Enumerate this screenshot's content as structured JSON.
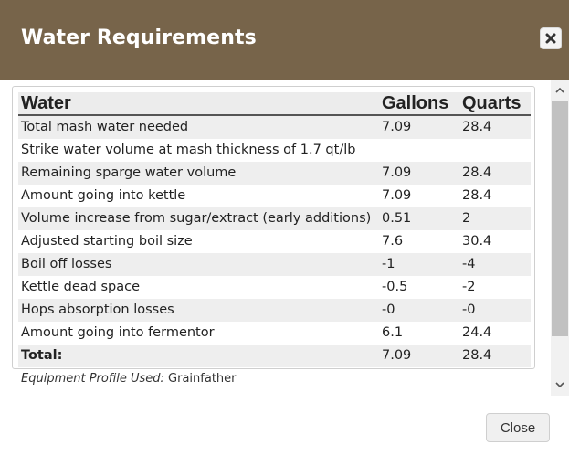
{
  "dialog": {
    "title": "Water Requirements",
    "close_icon": "close-icon"
  },
  "table": {
    "headers": [
      "Water",
      "Gallons",
      "Quarts"
    ],
    "rows": [
      {
        "label": "Total mash water needed",
        "gallons": "7.09",
        "quarts": "28.4"
      },
      {
        "label": "Strike water volume at mash thickness of 1.7 qt/lb",
        "gallons": "",
        "quarts": ""
      },
      {
        "label": "Remaining sparge water volume",
        "gallons": "7.09",
        "quarts": "28.4"
      },
      {
        "label": "Amount going into kettle",
        "gallons": "7.09",
        "quarts": "28.4"
      },
      {
        "label": "Volume increase from sugar/extract (early additions)",
        "gallons": "0.51",
        "quarts": "2"
      },
      {
        "label": "Adjusted starting boil size",
        "gallons": "7.6",
        "quarts": "30.4"
      },
      {
        "label": "Boil off losses",
        "gallons": "-1",
        "quarts": "-4"
      },
      {
        "label": "Kettle dead space",
        "gallons": "-0.5",
        "quarts": "-2"
      },
      {
        "label": "Hops absorption losses",
        "gallons": "-0",
        "quarts": "-0"
      },
      {
        "label": "Amount going into fermentor",
        "gallons": "6.1",
        "quarts": "24.4"
      }
    ],
    "total": {
      "label": "Total:",
      "gallons": "7.09",
      "quarts": "28.4"
    }
  },
  "equipment": {
    "label": "Equipment Profile Used:",
    "value": "Grainfather"
  },
  "footer": {
    "close_label": "Close"
  },
  "colors": {
    "header_bg": "#77644a",
    "row_stripe": "#eeeeee"
  }
}
